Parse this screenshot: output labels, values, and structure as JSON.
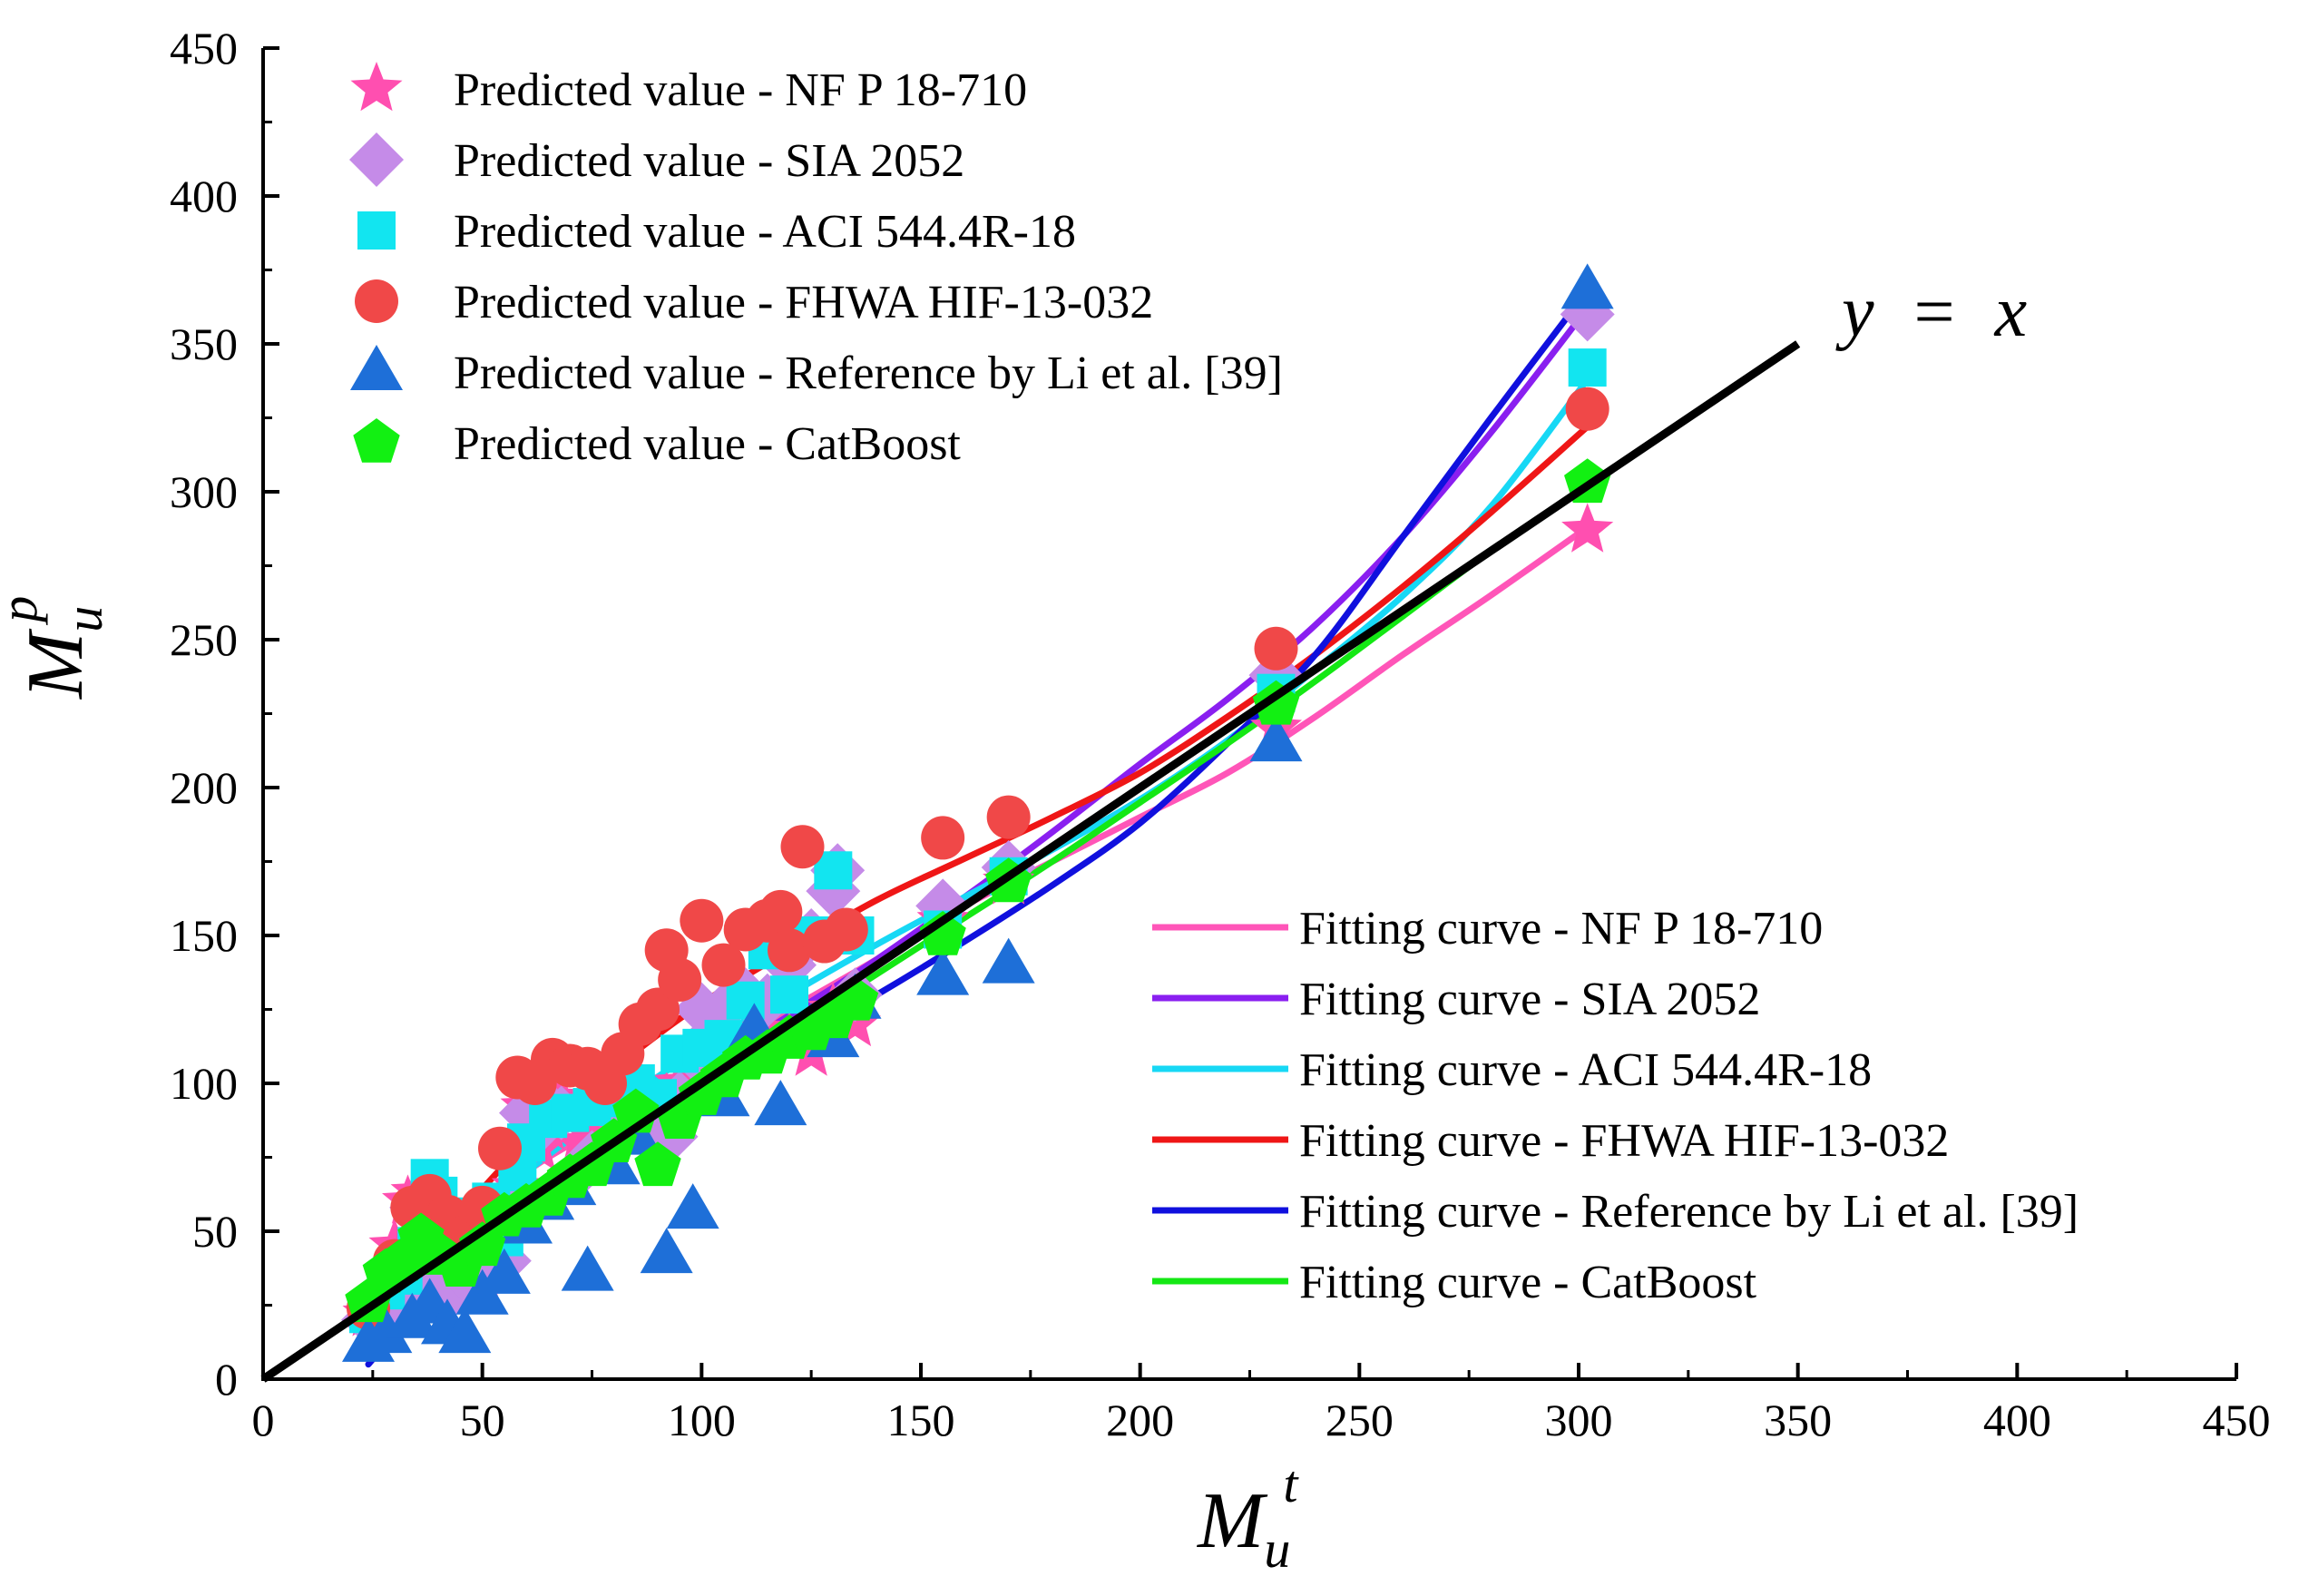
{
  "chart_data": {
    "type": "scatter",
    "title": "",
    "xlabel": {
      "main": "M",
      "sub": "u",
      "sup": "t"
    },
    "ylabel": {
      "main": "M",
      "sub": "u",
      "sup": "p"
    },
    "xlim": [
      0,
      450
    ],
    "ylim": [
      0,
      450
    ],
    "xticks": [
      0,
      50,
      100,
      150,
      200,
      250,
      300,
      350,
      400,
      450
    ],
    "yticks": [
      0,
      50,
      100,
      150,
      200,
      250,
      300,
      350,
      400,
      450
    ],
    "xtick_labels": [
      "0",
      "50",
      "100",
      "150",
      "200",
      "250",
      "300",
      "350",
      "400",
      "450"
    ],
    "ytick_labels": [
      "0",
      "50",
      "100",
      "150",
      "200",
      "250",
      "300",
      "350",
      "400",
      "450"
    ],
    "reference_line": {
      "label": "y = x",
      "label_parts": [
        "y",
        "=",
        "x"
      ],
      "x": [
        0,
        350
      ],
      "y": [
        0,
        350
      ],
      "color": "#000000"
    },
    "series": [
      {
        "name": "Predicted value - NF P 18-710",
        "fit_name": "Fitting curve - NF P 18-710",
        "marker": "star",
        "color": "#FF4FB0",
        "fit_color": "#FF55B8",
        "points": [
          [
            24,
            22
          ],
          [
            28,
            28
          ],
          [
            30,
            45
          ],
          [
            33,
            60
          ],
          [
            35,
            63
          ],
          [
            38,
            40
          ],
          [
            40,
            50
          ],
          [
            42,
            32
          ],
          [
            45,
            30
          ],
          [
            48,
            40
          ],
          [
            50,
            35
          ],
          [
            55,
            55
          ],
          [
            58,
            65
          ],
          [
            60,
            92
          ],
          [
            63,
            78
          ],
          [
            65,
            85
          ],
          [
            68,
            95
          ],
          [
            72,
            80
          ],
          [
            75,
            82
          ],
          [
            80,
            88
          ],
          [
            85,
            92
          ],
          [
            88,
            90
          ],
          [
            92,
            95
          ],
          [
            95,
            100
          ],
          [
            98,
            100
          ],
          [
            100,
            105
          ],
          [
            105,
            110
          ],
          [
            110,
            112
          ],
          [
            115,
            118
          ],
          [
            120,
            115
          ],
          [
            125,
            110
          ],
          [
            130,
            125
          ],
          [
            135,
            120
          ],
          [
            155,
            155
          ],
          [
            170,
            168
          ],
          [
            231,
            220
          ],
          [
            302,
            287
          ]
        ],
        "fit": [
          [
            24,
            20
          ],
          [
            40,
            45
          ],
          [
            60,
            70
          ],
          [
            80,
            88
          ],
          [
            100,
            108
          ],
          [
            120,
            125
          ],
          [
            140,
            142
          ],
          [
            160,
            160
          ],
          [
            180,
            175
          ],
          [
            200,
            190
          ],
          [
            220,
            205
          ],
          [
            240,
            224
          ],
          [
            260,
            245
          ],
          [
            280,
            265
          ],
          [
            302,
            288
          ]
        ]
      },
      {
        "name": "Predicted value - SIA 2052",
        "fit_name": "Fitting curve - SIA 2052",
        "marker": "diamond",
        "color": "#C58BE8",
        "fit_color": "#8A1FF0",
        "points": [
          [
            24,
            20
          ],
          [
            28,
            25
          ],
          [
            32,
            30
          ],
          [
            35,
            58
          ],
          [
            38,
            35
          ],
          [
            42,
            28
          ],
          [
            46,
            35
          ],
          [
            50,
            33
          ],
          [
            55,
            40
          ],
          [
            58,
            60
          ],
          [
            60,
            90
          ],
          [
            63,
            85
          ],
          [
            65,
            92
          ],
          [
            68,
            90
          ],
          [
            72,
            70
          ],
          [
            75,
            75
          ],
          [
            80,
            80
          ],
          [
            85,
            88
          ],
          [
            90,
            85
          ],
          [
            93,
            82
          ],
          [
            95,
            95
          ],
          [
            98,
            110
          ],
          [
            100,
            125
          ],
          [
            105,
            125
          ],
          [
            110,
            130
          ],
          [
            115,
            128
          ],
          [
            120,
            140
          ],
          [
            125,
            150
          ],
          [
            130,
            165
          ],
          [
            131,
            172
          ],
          [
            135,
            130
          ],
          [
            155,
            160
          ],
          [
            170,
            173
          ],
          [
            231,
            238
          ],
          [
            302,
            360
          ]
        ],
        "fit": [
          [
            24,
            17
          ],
          [
            40,
            40
          ],
          [
            60,
            63
          ],
          [
            80,
            84
          ],
          [
            100,
            104
          ],
          [
            120,
            123
          ],
          [
            140,
            142
          ],
          [
            160,
            163
          ],
          [
            180,
            185
          ],
          [
            200,
            208
          ],
          [
            220,
            230
          ],
          [
            240,
            255
          ],
          [
            260,
            285
          ],
          [
            280,
            320
          ],
          [
            302,
            362
          ]
        ]
      },
      {
        "name": "Predicted value - ACI 544.4R-18",
        "fit_name": "Fitting curve - ACI 544.4R-18",
        "marker": "square",
        "color": "#12E5F0",
        "fit_color": "#17D8F5",
        "points": [
          [
            24,
            22
          ],
          [
            28,
            30
          ],
          [
            32,
            35
          ],
          [
            35,
            45
          ],
          [
            38,
            68
          ],
          [
            40,
            62
          ],
          [
            45,
            45
          ],
          [
            48,
            55
          ],
          [
            52,
            60
          ],
          [
            55,
            48
          ],
          [
            58,
            70
          ],
          [
            60,
            80
          ],
          [
            65,
            88
          ],
          [
            70,
            90
          ],
          [
            75,
            92
          ],
          [
            80,
            95
          ],
          [
            85,
            100
          ],
          [
            90,
            95
          ],
          [
            95,
            110
          ],
          [
            100,
            112
          ],
          [
            105,
            115
          ],
          [
            110,
            128
          ],
          [
            115,
            145
          ],
          [
            120,
            130
          ],
          [
            125,
            150
          ],
          [
            130,
            172
          ],
          [
            135,
            150
          ],
          [
            155,
            152
          ],
          [
            170,
            170
          ],
          [
            231,
            232
          ],
          [
            302,
            342
          ]
        ],
        "fit": [
          [
            24,
            20
          ],
          [
            40,
            45
          ],
          [
            60,
            70
          ],
          [
            80,
            92
          ],
          [
            100,
            112
          ],
          [
            120,
            130
          ],
          [
            140,
            147
          ],
          [
            160,
            163
          ],
          [
            180,
            179
          ],
          [
            200,
            196
          ],
          [
            220,
            216
          ],
          [
            240,
            240
          ],
          [
            260,
            265
          ],
          [
            280,
            295
          ],
          [
            302,
            338
          ]
        ]
      },
      {
        "name": "Predicted value - FHWA HIF-13-032",
        "fit_name": "Fitting curve - FHWA HIF-13-032",
        "marker": "circle",
        "color": "#F04848",
        "fit_color": "#EF1616",
        "points": [
          [
            24,
            24
          ],
          [
            30,
            40
          ],
          [
            34,
            58
          ],
          [
            38,
            62
          ],
          [
            42,
            55
          ],
          [
            46,
            48
          ],
          [
            50,
            58
          ],
          [
            54,
            78
          ],
          [
            58,
            102
          ],
          [
            62,
            100
          ],
          [
            66,
            108
          ],
          [
            70,
            106
          ],
          [
            74,
            105
          ],
          [
            78,
            100
          ],
          [
            82,
            110
          ],
          [
            86,
            120
          ],
          [
            90,
            125
          ],
          [
            92,
            145
          ],
          [
            95,
            135
          ],
          [
            100,
            155
          ],
          [
            105,
            140
          ],
          [
            110,
            152
          ],
          [
            115,
            155
          ],
          [
            118,
            158
          ],
          [
            120,
            145
          ],
          [
            123,
            180
          ],
          [
            128,
            148
          ],
          [
            133,
            152
          ],
          [
            155,
            183
          ],
          [
            170,
            190
          ],
          [
            231,
            247
          ],
          [
            302,
            328
          ]
        ],
        "fit": [
          [
            24,
            24
          ],
          [
            40,
            48
          ],
          [
            60,
            80
          ],
          [
            80,
            105
          ],
          [
            100,
            127
          ],
          [
            120,
            145
          ],
          [
            140,
            162
          ],
          [
            160,
            176
          ],
          [
            180,
            190
          ],
          [
            200,
            205
          ],
          [
            220,
            224
          ],
          [
            240,
            245
          ],
          [
            260,
            268
          ],
          [
            280,
            293
          ],
          [
            302,
            322
          ]
        ]
      },
      {
        "name": "Predicted value - Reference by Li et al. [39]",
        "fit_name": "Fitting curve - Reference by Li et al. [39]",
        "marker": "triangle",
        "color": "#1E6FD8",
        "fit_color": "#1010DE",
        "points": [
          [
            24,
            12
          ],
          [
            28,
            15
          ],
          [
            34,
            20
          ],
          [
            38,
            25
          ],
          [
            42,
            18
          ],
          [
            46,
            15
          ],
          [
            50,
            28
          ],
          [
            55,
            35
          ],
          [
            60,
            52
          ],
          [
            65,
            60
          ],
          [
            70,
            65
          ],
          [
            74,
            36
          ],
          [
            80,
            72
          ],
          [
            85,
            82
          ],
          [
            92,
            42
          ],
          [
            98,
            57
          ],
          [
            105,
            95
          ],
          [
            112,
            118
          ],
          [
            118,
            92
          ],
          [
            125,
            118
          ],
          [
            130,
            115
          ],
          [
            135,
            128
          ],
          [
            155,
            136
          ],
          [
            170,
            140
          ],
          [
            231,
            215
          ],
          [
            302,
            368
          ]
        ],
        "fit": [
          [
            24,
            5
          ],
          [
            40,
            32
          ],
          [
            60,
            55
          ],
          [
            80,
            77
          ],
          [
            100,
            95
          ],
          [
            120,
            113
          ],
          [
            140,
            130
          ],
          [
            160,
            148
          ],
          [
            180,
            167
          ],
          [
            200,
            188
          ],
          [
            220,
            215
          ],
          [
            240,
            245
          ],
          [
            260,
            285
          ],
          [
            280,
            325
          ],
          [
            302,
            368
          ]
        ]
      },
      {
        "name": "Predicted value - CatBoost",
        "fit_name": "Fitting curve - CatBoost",
        "marker": "pentagon",
        "color": "#12F012",
        "fit_color": "#14E814",
        "points": [
          [
            24,
            26
          ],
          [
            28,
            36
          ],
          [
            32,
            40
          ],
          [
            36,
            48
          ],
          [
            40,
            42
          ],
          [
            45,
            38
          ],
          [
            50,
            45
          ],
          [
            55,
            55
          ],
          [
            60,
            58
          ],
          [
            65,
            62
          ],
          [
            70,
            68
          ],
          [
            75,
            72
          ],
          [
            80,
            80
          ],
          [
            85,
            90
          ],
          [
            90,
            72
          ],
          [
            95,
            88
          ],
          [
            100,
            96
          ],
          [
            105,
            102
          ],
          [
            110,
            108
          ],
          [
            115,
            110
          ],
          [
            120,
            115
          ],
          [
            125,
            118
          ],
          [
            130,
            122
          ],
          [
            135,
            128
          ],
          [
            155,
            150
          ],
          [
            170,
            168
          ],
          [
            231,
            228
          ],
          [
            302,
            303
          ]
        ],
        "fit": [
          [
            24,
            28
          ],
          [
            40,
            45
          ],
          [
            60,
            62
          ],
          [
            80,
            80
          ],
          [
            100,
            100
          ],
          [
            120,
            118
          ],
          [
            140,
            137
          ],
          [
            160,
            156
          ],
          [
            180,
            175
          ],
          [
            200,
            195
          ],
          [
            220,
            215
          ],
          [
            240,
            236
          ],
          [
            260,
            258
          ],
          [
            280,
            280
          ],
          [
            302,
            302
          ]
        ]
      }
    ]
  }
}
